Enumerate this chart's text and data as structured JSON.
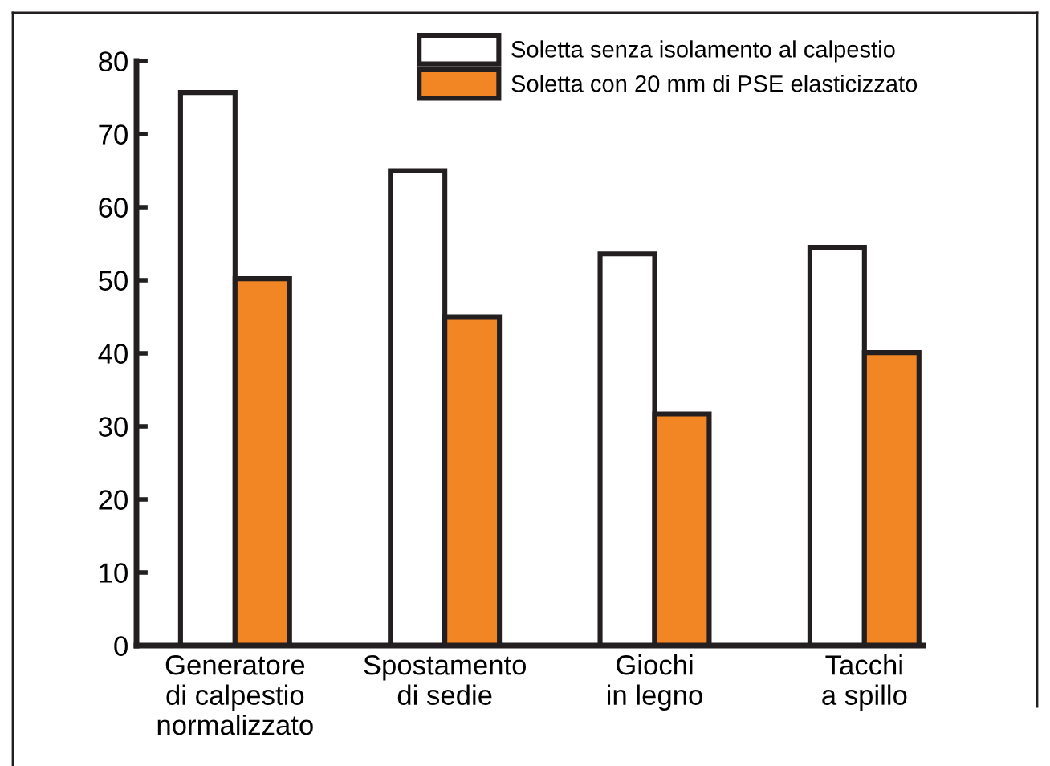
{
  "chart_data": {
    "type": "bar",
    "categories": [
      "Generatore\ndi calpestio\nnormalizzato",
      "Spostamento\ndi sedie",
      "Giochi\nin legno",
      "Tacchi\na spillo"
    ],
    "series": [
      {
        "name": "Soletta senza isolamento al calpestio",
        "color": "#ffffff",
        "values": [
          75.7,
          65,
          53.6,
          54.5
        ]
      },
      {
        "name": "Soletta con 20 mm di PSE elasticizzato",
        "color": "#f28524",
        "values": [
          50.2,
          45,
          31.7,
          40.1
        ]
      }
    ],
    "ylim": [
      0,
      80
    ],
    "yticks": [
      0,
      10,
      20,
      30,
      40,
      50,
      60,
      70,
      80
    ],
    "grid": false,
    "legend": "top right"
  }
}
